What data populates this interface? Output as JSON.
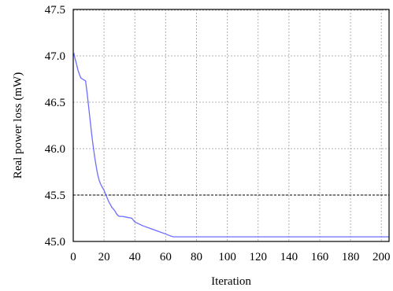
{
  "chart_data": {
    "type": "line",
    "title": "",
    "xlabel": "Iteration",
    "ylabel": "Real power loss (mW)",
    "xlim": [
      0,
      205
    ],
    "ylim": [
      45.0,
      47.5
    ],
    "x_ticks": [
      0,
      20,
      40,
      60,
      80,
      100,
      120,
      140,
      160,
      180,
      200
    ],
    "y_ticks": [
      45.0,
      45.5,
      46.0,
      46.5,
      47.0,
      47.5
    ],
    "grid": true,
    "reference_line": 45.5,
    "colors": {
      "series": "#6d6dff",
      "grid": "#b0b0b0",
      "axis": "#000000"
    },
    "series": [
      {
        "x": [
          0,
          0.5,
          1,
          2,
          3,
          4,
          5,
          6,
          7,
          8,
          9,
          10,
          11,
          12,
          13,
          14,
          15,
          16,
          17,
          18,
          19,
          20,
          21,
          22,
          23,
          24,
          25,
          26,
          27,
          28,
          29,
          30,
          32,
          35,
          38,
          40,
          45,
          50,
          55,
          60,
          63,
          65,
          70,
          80,
          100,
          120,
          140,
          160,
          180,
          200,
          205
        ],
        "y": [
          47.0,
          47.02,
          46.98,
          46.92,
          46.85,
          46.8,
          46.76,
          46.75,
          46.74,
          46.73,
          46.6,
          46.45,
          46.3,
          46.15,
          46.02,
          45.9,
          45.8,
          45.71,
          45.65,
          45.61,
          45.58,
          45.55,
          45.51,
          45.47,
          45.43,
          45.4,
          45.37,
          45.35,
          45.33,
          45.3,
          45.28,
          45.27,
          45.27,
          45.26,
          45.25,
          45.21,
          45.17,
          45.14,
          45.11,
          45.08,
          45.06,
          45.05,
          45.05,
          45.05,
          45.05,
          45.05,
          45.05,
          45.05,
          45.05,
          45.05,
          45.05
        ]
      }
    ]
  }
}
